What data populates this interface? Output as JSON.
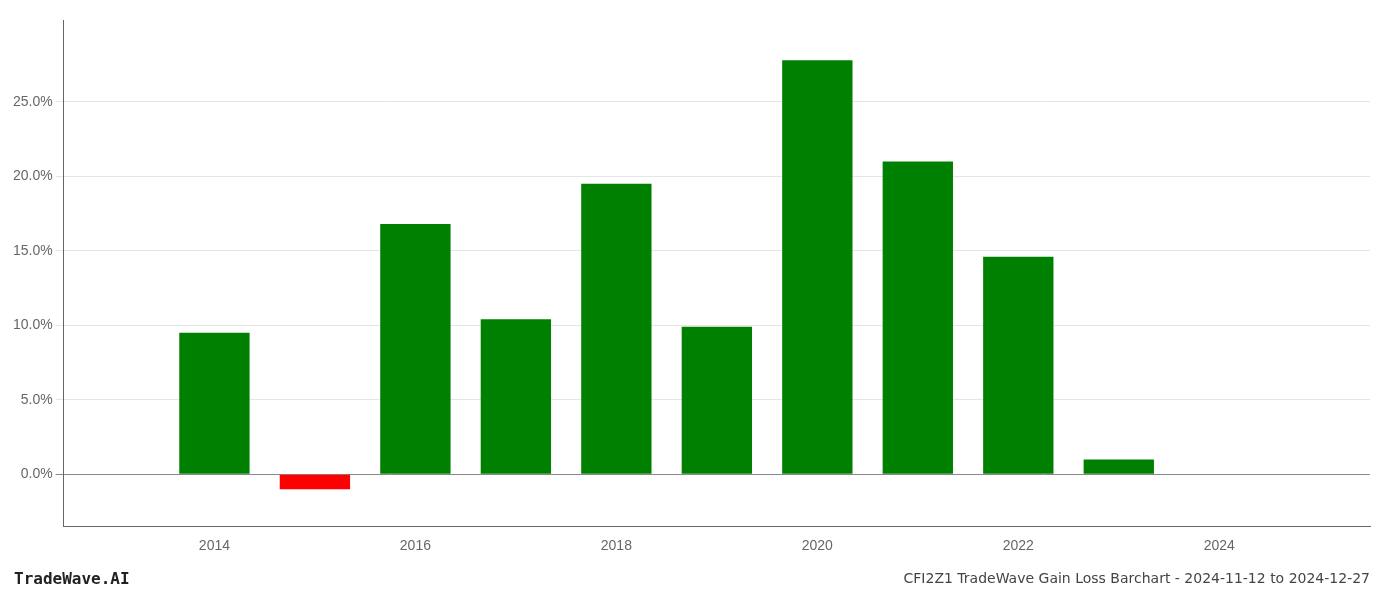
{
  "chart_data": {
    "type": "bar",
    "title": "CFI2Z1 TradeWave Gain Loss Barchart - 2024-11-12 to 2024-12-27",
    "annotations": [
      "TradeWave.AI"
    ],
    "x": [
      2014,
      2015,
      2016,
      2017,
      2018,
      2019,
      2020,
      2021,
      2022,
      2023
    ],
    "values": [
      0.095,
      -0.01,
      0.168,
      0.104,
      0.195,
      0.099,
      0.278,
      0.21,
      0.146,
      0.01
    ],
    "colors": [
      "#008000",
      "#ff0000",
      "#008000",
      "#008000",
      "#008000",
      "#008000",
      "#008000",
      "#008000",
      "#008000",
      "#008000"
    ],
    "xlim": [
      2012.5,
      2025.5
    ],
    "xticks": [
      2014,
      2016,
      2018,
      2020,
      2022,
      2024
    ],
    "ylim": [
      -0.035,
      0.305
    ],
    "yticks": [
      {
        "value": 0.0,
        "label": "0.0%"
      },
      {
        "value": 0.05,
        "label": "5.0%"
      },
      {
        "value": 0.1,
        "label": "10.0%"
      },
      {
        "value": 0.15,
        "label": "15.0%"
      },
      {
        "value": 0.2,
        "label": "20.0%"
      },
      {
        "value": 0.25,
        "label": "25.0%"
      }
    ],
    "grid": true
  }
}
